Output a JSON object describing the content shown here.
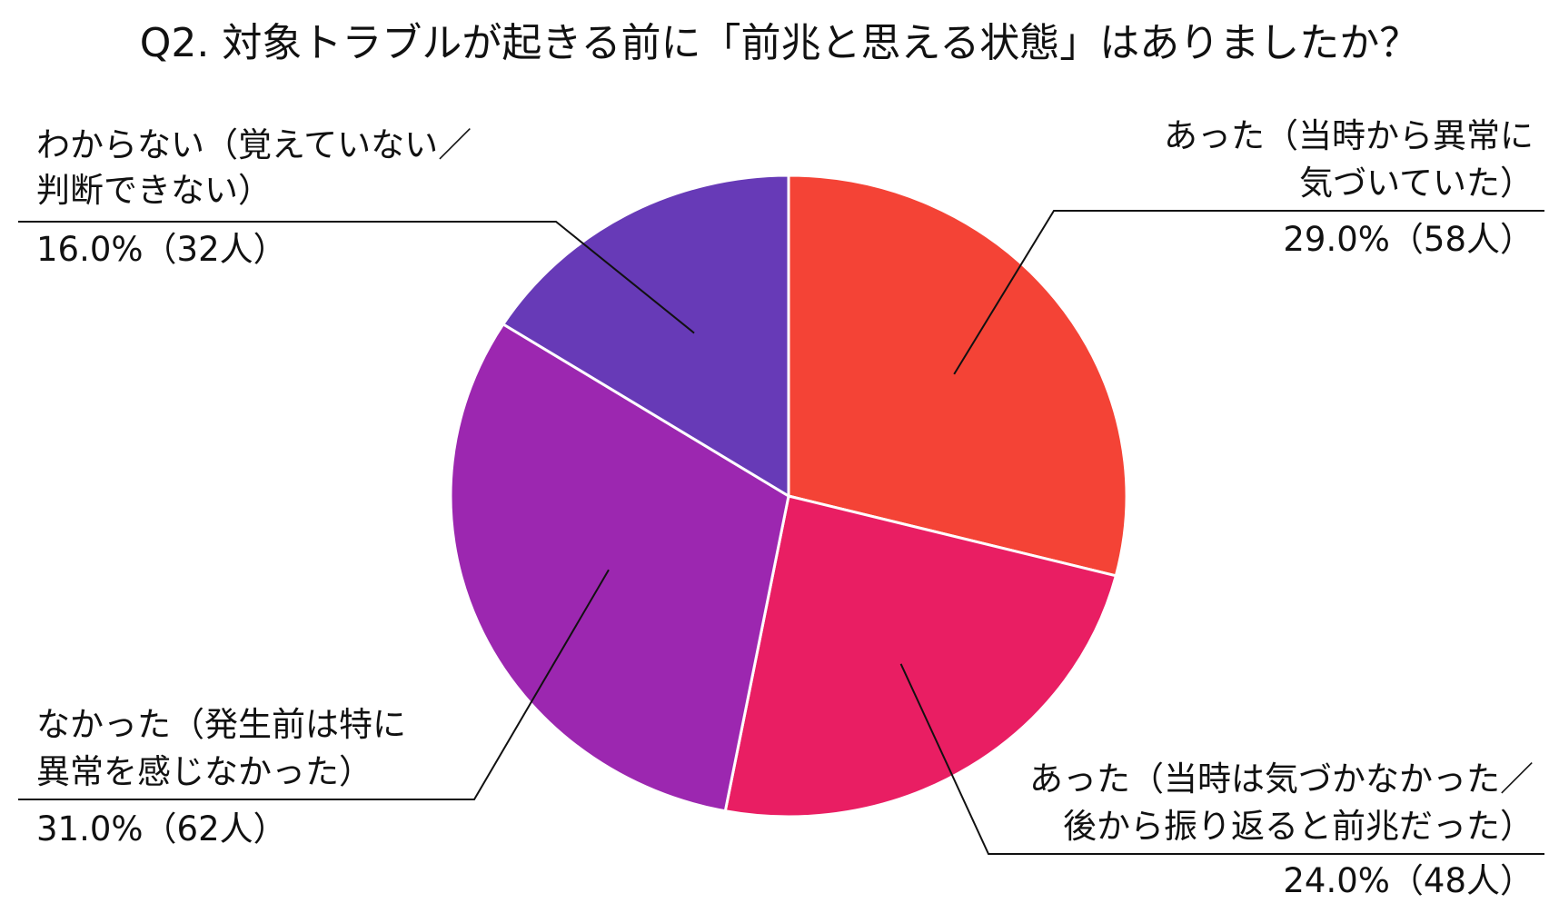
{
  "chart_data": {
    "type": "pie",
    "title": "Q2. 対象トラブルが起きる前に「前兆と思える状態」はありましたか？",
    "start_angle_deg": 0,
    "direction": "clockwise",
    "slices": [
      {
        "lines": [
          "あった（当時から異常に",
          "気づいていた）"
        ],
        "value_label": "29.0%（58人）",
        "percent": 29.0,
        "count": 58,
        "color": "#F44336"
      },
      {
        "lines": [
          "あった（当時は気づかなかった／",
          "後から振り返ると前兆だった）"
        ],
        "value_label": "24.0%（48人）",
        "percent": 24.0,
        "count": 48,
        "color": "#E91E63"
      },
      {
        "lines": [
          "なかった（発生前は特に",
          "異常を感じなかった）"
        ],
        "value_label": "31.0%（62人）",
        "percent": 31.0,
        "count": 62,
        "color": "#9C27B0"
      },
      {
        "lines": [
          "わからない（覚えていない／",
          "判断できない）"
        ],
        "value_label": "16.0%（32人）",
        "percent": 16.0,
        "count": 32,
        "color": "#673AB7"
      }
    ]
  }
}
